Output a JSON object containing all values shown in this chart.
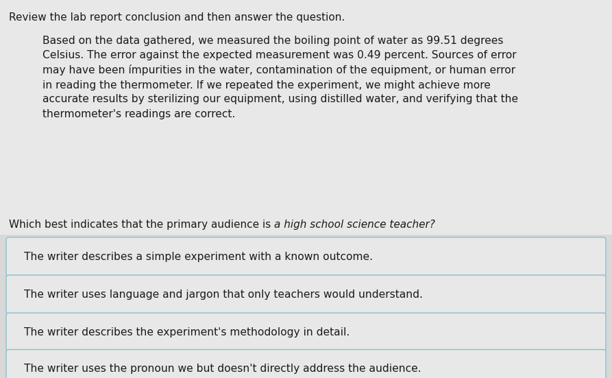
{
  "background_color": "#d8d8d8",
  "top_section_color": "#e8e8e8",
  "instruction_text": "Review the lab report conclusion and then answer the question.",
  "passage_text": "Based on the data gathered, we measured the boiling point of water as 99.51 degrees\nCelsius. The error against the expected measurement was 0.49 percent. Sources of error\nmay have been ímpurities in the water, contamination of the equipment, or human error\nin reading the thermometer. If we repeated the experiment, we might achieve more\naccurate results by sterilizing our equipment, using distilled water, and verifying that the\nthermometer's readings are correct.",
  "question_text_normal": "Which best indicates that the primary audience is ",
  "question_text_italic": "a high school science teacher?",
  "answer_choices": [
    "The writer describes a simple experiment with a known outcome.",
    "The writer uses language and jargon that only teachers would understand.",
    "The writer describes the experiment's methodology in detail.",
    "The writer uses the pronoun we but doesn't directly address the audience."
  ],
  "box_bg_color": "#e8e8e8",
  "box_border_color": "#8bbfcc",
  "font_size_instruction": 11.0,
  "font_size_passage": 11.2,
  "font_size_question": 11.0,
  "font_size_answer": 11.2,
  "text_color": "#1a1a1a"
}
